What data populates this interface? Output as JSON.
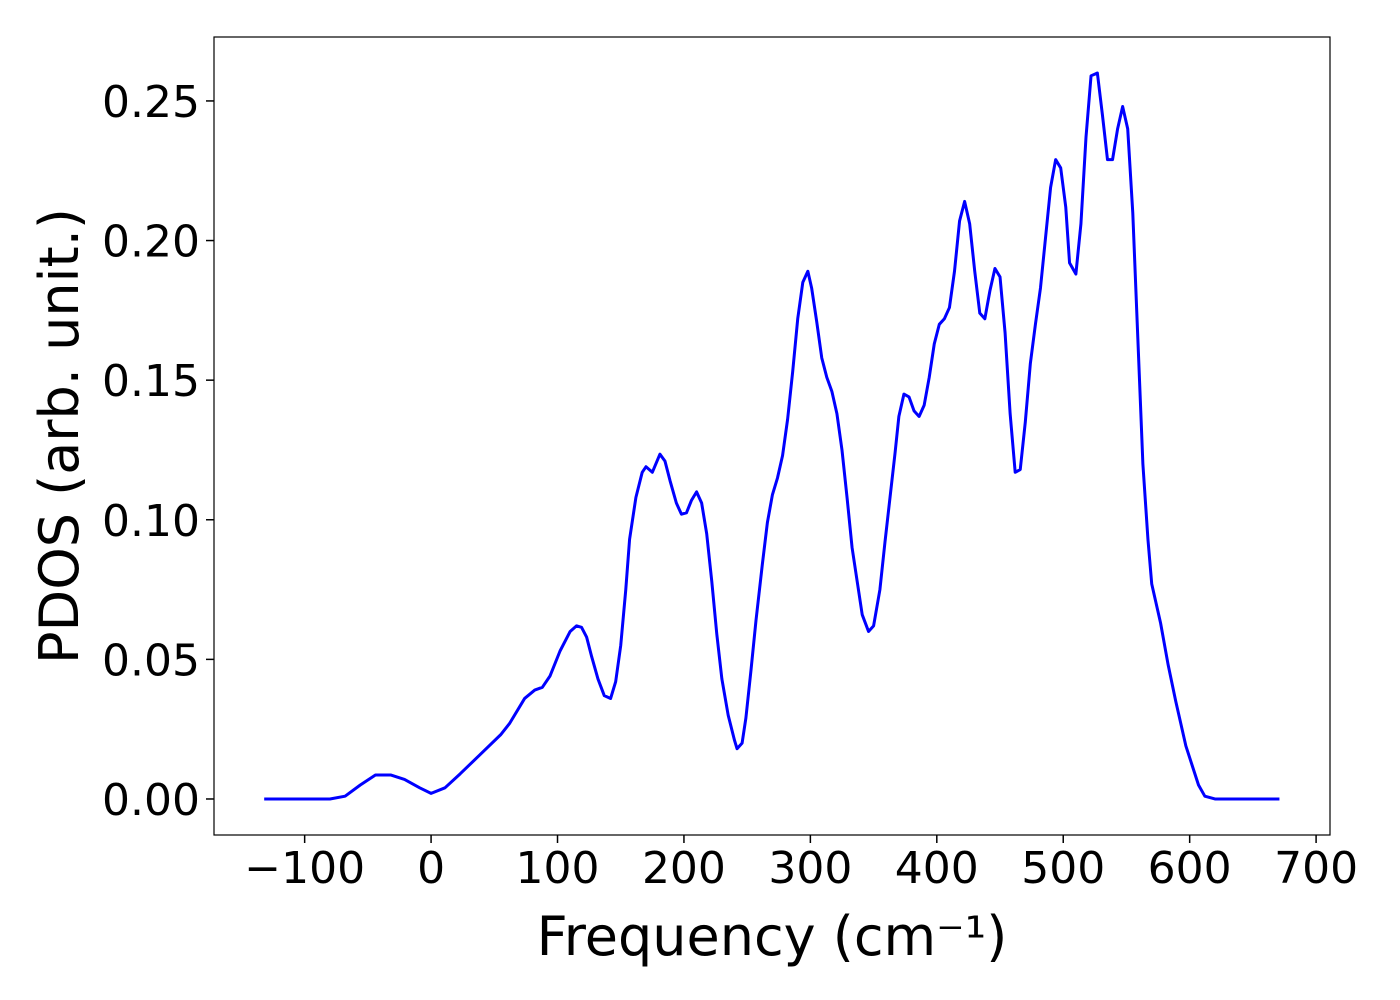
{
  "chart_data": {
    "type": "line",
    "x_label": "Frequency (cm⁻¹)",
    "y_label": "PDOS (arb. unit.)",
    "color": "#0000ff",
    "xlim": [
      -171.7,
      711
    ],
    "ylim": [
      -0.0129,
      0.2729
    ],
    "xticks": [
      {
        "value": -100,
        "label": "−100"
      },
      0,
      100,
      200,
      300,
      400,
      500,
      600,
      700
    ],
    "yticks": [
      {
        "value": 0,
        "label": "0.00"
      },
      {
        "value": 0.05,
        "label": "0.05"
      },
      {
        "value": 0.1,
        "label": "0.10"
      },
      {
        "value": 0.15,
        "label": "0.15"
      },
      {
        "value": 0.2,
        "label": "0.20"
      },
      {
        "value": 0.25,
        "label": "0.25"
      }
    ],
    "x": [
      -132,
      -80,
      -68,
      -56,
      -44,
      -32,
      -21,
      -9,
      0,
      11,
      23,
      39,
      55,
      62,
      74,
      82,
      88,
      94,
      102,
      110,
      115,
      119,
      123,
      127,
      132,
      137,
      142,
      146,
      150,
      154,
      157,
      162,
      167,
      170,
      175,
      181,
      185,
      189,
      194,
      198,
      202,
      206,
      210,
      214,
      218,
      222,
      226,
      230,
      235,
      240,
      242,
      246,
      249,
      253,
      257,
      262,
      266,
      270,
      274,
      278,
      282,
      286,
      290,
      294,
      298,
      301,
      305,
      309,
      313,
      317,
      321,
      325,
      329,
      333,
      337,
      341,
      346,
      350,
      355,
      359,
      363,
      367,
      370,
      374,
      378,
      382,
      386,
      390,
      394,
      398,
      402,
      406,
      410,
      414,
      418,
      422,
      426,
      430,
      434,
      438,
      442,
      446,
      450,
      454,
      458,
      462,
      466,
      470,
      474,
      478,
      482,
      486,
      490,
      494,
      498,
      502,
      505,
      510,
      514,
      518,
      522,
      527,
      531,
      535,
      539,
      543,
      547,
      551,
      555,
      559,
      563,
      567,
      570,
      577,
      583,
      589,
      593,
      597,
      602,
      607,
      612,
      620,
      671
    ],
    "values": [
      0,
      0,
      0.001,
      0.005,
      0.0086,
      0.0086,
      0.007,
      0.004,
      0.002,
      0.004,
      0.009,
      0.016,
      0.023,
      0.027,
      0.036,
      0.039,
      0.04,
      0.044,
      0.053,
      0.06,
      0.062,
      0.0615,
      0.058,
      0.051,
      0.043,
      0.037,
      0.036,
      0.042,
      0.055,
      0.075,
      0.093,
      0.108,
      0.117,
      0.119,
      0.117,
      0.1235,
      0.121,
      0.114,
      0.106,
      0.102,
      0.1025,
      0.107,
      0.11,
      0.106,
      0.095,
      0.078,
      0.059,
      0.043,
      0.03,
      0.021,
      0.018,
      0.02,
      0.029,
      0.046,
      0.064,
      0.084,
      0.099,
      0.109,
      0.115,
      0.123,
      0.136,
      0.153,
      0.172,
      0.185,
      0.189,
      0.183,
      0.171,
      0.158,
      0.151,
      0.146,
      0.138,
      0.125,
      0.108,
      0.09,
      0.078,
      0.066,
      0.06,
      0.062,
      0.075,
      0.092,
      0.108,
      0.124,
      0.137,
      0.145,
      0.144,
      0.139,
      0.137,
      0.141,
      0.151,
      0.163,
      0.17,
      0.172,
      0.176,
      0.189,
      0.207,
      0.214,
      0.206,
      0.189,
      0.174,
      0.172,
      0.182,
      0.19,
      0.187,
      0.167,
      0.138,
      0.117,
      0.118,
      0.135,
      0.156,
      0.17,
      0.183,
      0.201,
      0.219,
      0.229,
      0.226,
      0.212,
      0.192,
      0.188,
      0.206,
      0.237,
      0.259,
      0.26,
      0.245,
      0.229,
      0.229,
      0.24,
      0.248,
      0.24,
      0.21,
      0.165,
      0.12,
      0.093,
      0.077,
      0.063,
      0.048,
      0.035,
      0.027,
      0.019,
      0.012,
      0.005,
      0.001,
      0,
      0
    ]
  }
}
